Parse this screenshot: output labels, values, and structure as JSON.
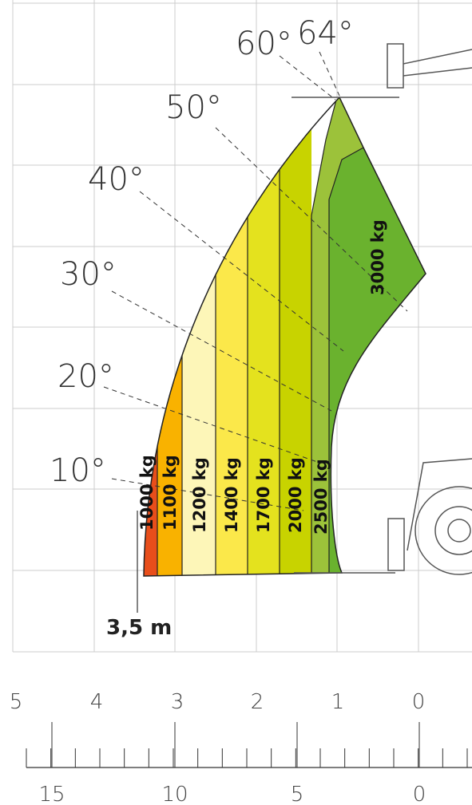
{
  "angles": [
    "10°",
    "20°",
    "30°",
    "40°",
    "50°",
    "60°",
    "64°"
  ],
  "loads": [
    "1000 kg",
    "1100 kg",
    "1200 kg",
    "1400 kg",
    "1700 kg",
    "2000 kg",
    "2500 kg",
    "3000 kg"
  ],
  "min_reach": "3,5 m",
  "scale_m": [
    5,
    4,
    3,
    2,
    1,
    0
  ],
  "scale_ft": [
    15,
    10,
    5,
    0
  ]
}
